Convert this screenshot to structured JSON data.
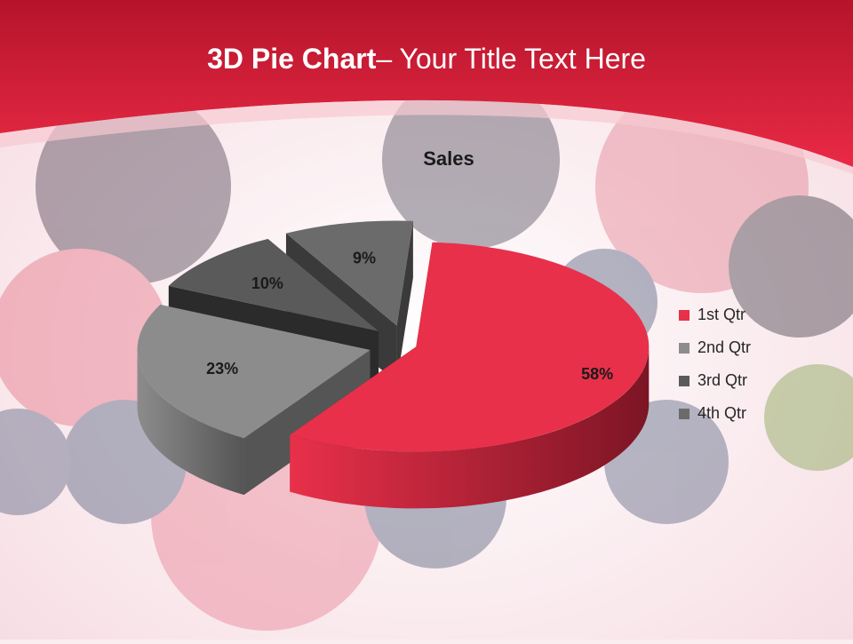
{
  "slide": {
    "title_bold": "3D Pie Chart",
    "title_rest": "– Your Title Text Here"
  },
  "chart_data": {
    "type": "pie",
    "title": "Sales",
    "categories": [
      "1st Qtr",
      "2nd Qtr",
      "3rd Qtr",
      "4th Qtr"
    ],
    "values": [
      58,
      23,
      10,
      9
    ],
    "data_labels": [
      "58%",
      "23%",
      "10%",
      "9%"
    ],
    "value_format": "percent",
    "exploded": true,
    "three_d": true,
    "legend_position": "right",
    "colors": [
      "#e8304a",
      "#8c8c8c",
      "#5a5a5a",
      "#6b6b6b"
    ]
  },
  "theme": {
    "header_color": "#e3223f",
    "background_tint": "#fbeef1"
  }
}
